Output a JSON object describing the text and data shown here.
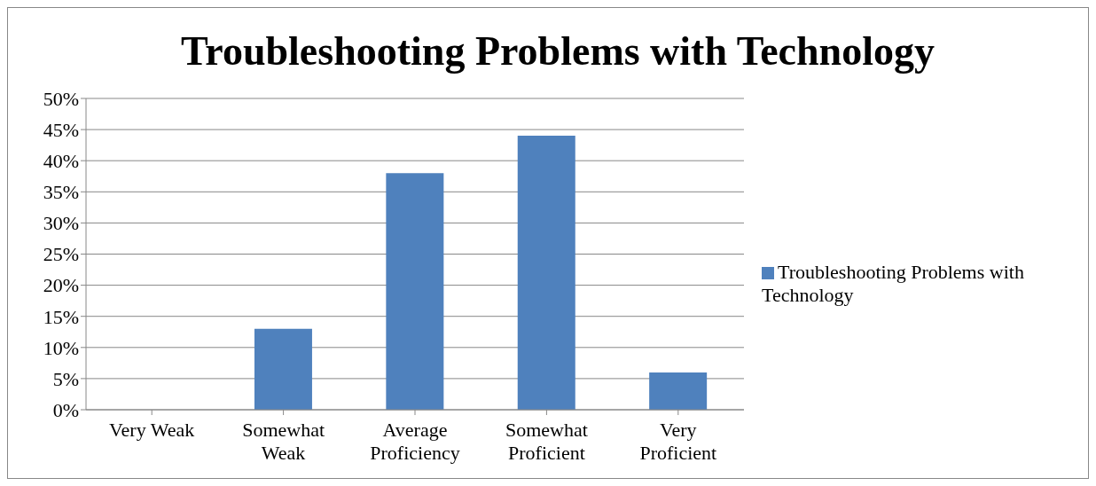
{
  "chart_data": {
    "type": "bar",
    "title": "Troubleshooting Problems with Technology",
    "categories": [
      "Very Weak",
      "Somewhat Weak",
      "Average Proficiency",
      "Somewhat Proficient",
      "Very Proficient"
    ],
    "series": [
      {
        "name": "Troubleshooting Problems with Technology",
        "color": "#4f81bd",
        "values": [
          0,
          13,
          38,
          44,
          6
        ]
      }
    ],
    "ylim": [
      0,
      50
    ],
    "yticks": [
      {
        "value": 0,
        "label": "0%"
      },
      {
        "value": 5,
        "label": "5%"
      },
      {
        "value": 10,
        "label": "10%"
      },
      {
        "value": 15,
        "label": "15%"
      },
      {
        "value": 20,
        "label": "20%"
      },
      {
        "value": 25,
        "label": "25%"
      },
      {
        "value": 30,
        "label": "30%"
      },
      {
        "value": 35,
        "label": "35%"
      },
      {
        "value": 40,
        "label": "40%"
      },
      {
        "value": 45,
        "label": "45%"
      },
      {
        "value": 50,
        "label": "50%"
      }
    ],
    "grid": "y",
    "legend": "right"
  }
}
